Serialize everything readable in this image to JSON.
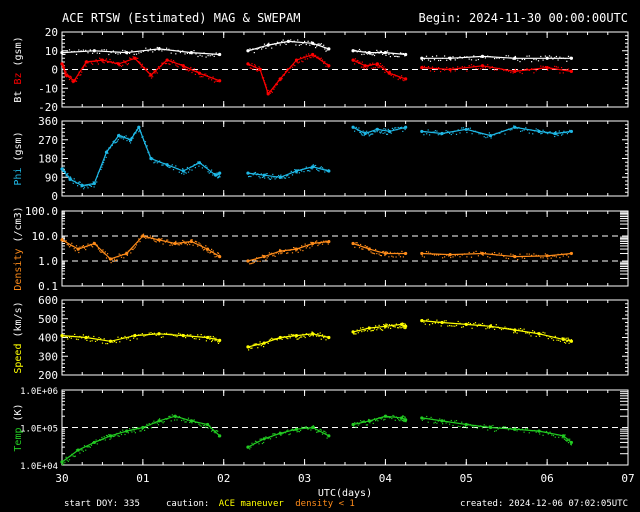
{
  "header": {
    "title": "ACE RTSW (Estimated) MAG & SWEPAM",
    "begin": "Begin: 2024-11-30 00:00:00UTC"
  },
  "footer": {
    "start_doy": "start DOY: 335",
    "caution_label": "caution:",
    "maneuver": "ACE maneuver",
    "density_note": "density < 1",
    "created": "created: 2024-12-06 07:02:05UTC"
  },
  "colors": {
    "background": "#000000",
    "frame": "#ffffff",
    "bt": "#ffffff",
    "bz": "#ff0000",
    "phi": "#1fb8e6",
    "density": "#ff8c1a",
    "speed": "#ffff00",
    "temp": "#22cc22",
    "maneuver": "#ffff00",
    "density_note": "#ff8c1a"
  },
  "chart_data": [
    {
      "type": "scatter",
      "name": "Bt/Bz",
      "ylabel_parts": [
        {
          "text": "Bt",
          "color": "#ffffff"
        },
        {
          "text": " Bz",
          "color": "#ff0000"
        },
        {
          "text": " (gsm)",
          "color": "#ffffff"
        }
      ],
      "ylim": [
        -20,
        20
      ],
      "yticks": [
        "20",
        "10",
        "0",
        "-10",
        "-20"
      ],
      "ytick_values": [
        20,
        10,
        0,
        -10,
        -20
      ],
      "dashed_lines": [
        0
      ],
      "series": [
        {
          "label": "Bt",
          "color": "#ffffff",
          "segments": [
            {
              "x": [
                0.0,
                0.4,
                0.8,
                1.2,
                1.6,
                1.95
              ],
              "y": [
                9,
                10,
                9,
                11,
                9,
                8
              ]
            },
            {
              "x": [
                2.3,
                2.55,
                2.8,
                3.1,
                3.3
              ],
              "y": [
                10,
                13,
                15,
                14,
                11
              ]
            },
            {
              "x": [
                3.6,
                3.8,
                4.0,
                4.25
              ],
              "y": [
                10,
                9,
                9,
                8
              ]
            },
            {
              "x": [
                4.45,
                4.8,
                5.2,
                5.6,
                6.0,
                6.3
              ],
              "y": [
                6,
                6,
                7,
                6,
                6,
                6
              ]
            }
          ]
        },
        {
          "label": "Bz",
          "color": "#ff0000",
          "segments": [
            {
              "x": [
                0.0,
                0.05,
                0.15,
                0.3,
                0.5,
                0.7,
                0.9,
                1.1,
                1.3,
                1.5,
                1.7,
                1.95
              ],
              "y": [
                3,
                -3,
                -6,
                4,
                5,
                3,
                6,
                -3,
                5,
                2,
                -2,
                -6
              ]
            },
            {
              "x": [
                2.3,
                2.45,
                2.55,
                2.7,
                2.9,
                3.1,
                3.3
              ],
              "y": [
                3,
                0,
                -13,
                -5,
                5,
                8,
                2
              ]
            },
            {
              "x": [
                3.6,
                3.75,
                3.9,
                4.05,
                4.25
              ],
              "y": [
                5,
                2,
                3,
                -2,
                -5
              ]
            },
            {
              "x": [
                4.45,
                4.8,
                5.2,
                5.6,
                6.0,
                6.3
              ],
              "y": [
                1,
                0,
                2,
                -1,
                1,
                -1
              ]
            }
          ]
        }
      ]
    },
    {
      "type": "scatter",
      "name": "Phi",
      "ylabel_parts": [
        {
          "text": "Phi",
          "color": "#1fb8e6"
        },
        {
          "text": " (gsm)",
          "color": "#ffffff"
        }
      ],
      "ylim": [
        0,
        360
      ],
      "yticks": [
        "360",
        "270",
        "180",
        "90",
        "0"
      ],
      "ytick_values": [
        360,
        270,
        180,
        90,
        0
      ],
      "dashed_lines": [],
      "series": [
        {
          "label": "Phi",
          "color": "#1fb8e6",
          "segments": [
            {
              "x": [
                0.0,
                0.1,
                0.25,
                0.4,
                0.55,
                0.7,
                0.85,
                0.95,
                1.1,
                1.3,
                1.5,
                1.7,
                1.9,
                1.95
              ],
              "y": [
                130,
                80,
                50,
                60,
                210,
                290,
                270,
                330,
                180,
                150,
                120,
                160,
                100,
                110
              ]
            },
            {
              "x": [
                2.3,
                2.5,
                2.7,
                2.9,
                3.1,
                3.3
              ],
              "y": [
                110,
                100,
                90,
                120,
                140,
                120
              ]
            },
            {
              "x": [
                3.6,
                3.75,
                3.9,
                4.05,
                4.25
              ],
              "y": [
                330,
                300,
                320,
                310,
                330
              ]
            },
            {
              "x": [
                4.45,
                4.7,
                5.0,
                5.3,
                5.6,
                5.9,
                6.1,
                6.3
              ],
              "y": [
                310,
                300,
                320,
                290,
                330,
                310,
                300,
                310
              ]
            }
          ]
        }
      ]
    },
    {
      "type": "scatter",
      "name": "Density",
      "ylabel_parts": [
        {
          "text": "Density",
          "color": "#ff8c1a"
        },
        {
          "text": " (/cm3)",
          "color": "#ffffff"
        }
      ],
      "yscale": "log",
      "ylim": [
        0.1,
        100
      ],
      "yticks": [
        "100.0",
        "10.0",
        "1.0",
        "0.1"
      ],
      "ytick_values": [
        100,
        10,
        1,
        0.1
      ],
      "dashed_lines": [
        10,
        1
      ],
      "series": [
        {
          "label": "Density",
          "color": "#ff8c1a",
          "segments": [
            {
              "x": [
                0.0,
                0.2,
                0.4,
                0.6,
                0.8,
                1.0,
                1.2,
                1.4,
                1.6,
                1.8,
                1.95
              ],
              "y": [
                7,
                3,
                5,
                1.2,
                2,
                10,
                7,
                5,
                6,
                3,
                1.5
              ]
            },
            {
              "x": [
                2.3,
                2.5,
                2.7,
                2.9,
                3.1,
                3.3
              ],
              "y": [
                1.0,
                1.5,
                2.5,
                3,
                5,
                6
              ]
            },
            {
              "x": [
                3.6,
                3.8,
                4.0,
                4.25
              ],
              "y": [
                5,
                3,
                2,
                2
              ]
            },
            {
              "x": [
                4.45,
                4.8,
                5.2,
                5.6,
                6.0,
                6.3
              ],
              "y": [
                2,
                1.8,
                2,
                1.5,
                1.6,
                2
              ]
            }
          ]
        }
      ]
    },
    {
      "type": "scatter",
      "name": "Speed",
      "ylabel_parts": [
        {
          "text": "Speed",
          "color": "#ffff00"
        },
        {
          "text": " (km/s)",
          "color": "#ffffff"
        }
      ],
      "ylim": [
        200,
        600
      ],
      "yticks": [
        "600",
        "500",
        "400",
        "300",
        "200"
      ],
      "ytick_values": [
        600,
        500,
        400,
        300,
        200
      ],
      "dashed_lines": [],
      "series": [
        {
          "label": "Speed",
          "color": "#ffff00",
          "segments": [
            {
              "x": [
                0.0,
                0.3,
                0.6,
                0.9,
                1.2,
                1.5,
                1.8,
                1.95
              ],
              "y": [
                410,
                400,
                380,
                410,
                420,
                410,
                400,
                385
              ]
            },
            {
              "x": [
                2.3,
                2.5,
                2.7,
                2.9,
                3.1,
                3.3
              ],
              "y": [
                350,
                370,
                400,
                410,
                420,
                400
              ]
            },
            {
              "x": [
                3.6,
                3.8,
                4.0,
                4.2,
                4.25
              ],
              "y": [
                430,
                450,
                460,
                470,
                460
              ]
            },
            {
              "x": [
                4.45,
                4.7,
                5.0,
                5.3,
                5.6,
                5.9,
                6.2,
                6.3
              ],
              "y": [
                490,
                480,
                470,
                460,
                440,
                420,
                390,
                380
              ]
            }
          ]
        }
      ]
    },
    {
      "type": "scatter",
      "name": "Temp",
      "ylabel_parts": [
        {
          "text": "Temp",
          "color": "#22cc22"
        },
        {
          "text": " (K)",
          "color": "#ffffff"
        }
      ],
      "yscale": "log",
      "ylim": [
        10000,
        1000000
      ],
      "yticks": [
        "1.0E+06",
        "1.0E+05",
        "1.0E+04"
      ],
      "ytick_values": [
        1000000,
        100000,
        10000
      ],
      "dashed_lines": [
        100000
      ],
      "series": [
        {
          "label": "Temp",
          "color": "#22cc22",
          "segments": [
            {
              "x": [
                0.0,
                0.2,
                0.4,
                0.6,
                0.8,
                1.0,
                1.2,
                1.4,
                1.6,
                1.8,
                1.95
              ],
              "y": [
                12000,
                25000,
                40000,
                60000,
                80000,
                100000,
                150000,
                200000,
                150000,
                120000,
                60000
              ]
            },
            {
              "x": [
                2.3,
                2.5,
                2.7,
                2.9,
                3.1,
                3.3
              ],
              "y": [
                30000,
                50000,
                70000,
                90000,
                100000,
                60000
              ]
            },
            {
              "x": [
                3.6,
                3.8,
                4.0,
                4.2,
                4.25
              ],
              "y": [
                120000,
                150000,
                200000,
                180000,
                160000
              ]
            },
            {
              "x": [
                4.45,
                4.7,
                5.0,
                5.3,
                5.6,
                5.9,
                6.2,
                6.3
              ],
              "y": [
                180000,
                150000,
                120000,
                100000,
                90000,
                80000,
                60000,
                40000
              ]
            }
          ]
        }
      ]
    }
  ],
  "x_axis": {
    "xlim": [
      0,
      7
    ],
    "major_ticks": [
      0,
      1,
      2,
      3,
      4,
      5,
      6,
      7
    ],
    "labels": [
      "30",
      "01",
      "02",
      "03",
      "04",
      "05",
      "06",
      "07"
    ],
    "xlabel": "UTC(days)"
  }
}
